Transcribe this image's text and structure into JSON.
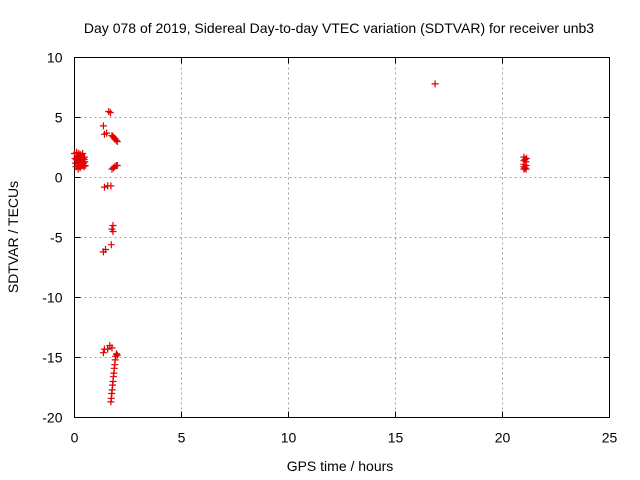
{
  "colors": {
    "series": "#e00000",
    "grid": "#a0a0a0",
    "axis": "#000000"
  },
  "chart_data": {
    "type": "scatter",
    "title": "Day 078 of 2019, Sidereal Day-to-day VTEC variation (SDTVAR) for receiver unb3",
    "xlabel": "GPS time / hours",
    "ylabel": "SDTVAR / TECUs",
    "xlim": [
      0,
      25
    ],
    "ylim": [
      -20,
      10
    ],
    "xticks": [
      0,
      5,
      10,
      15,
      20,
      25
    ],
    "yticks": [
      -20,
      -15,
      -10,
      -5,
      0,
      5,
      10
    ],
    "grid": true,
    "marker": "plus",
    "series": [
      {
        "points": [
          [
            0.0,
            2.0
          ],
          [
            0.03,
            1.6
          ],
          [
            0.05,
            1.2
          ],
          [
            0.07,
            0.9
          ],
          [
            0.1,
            2.1
          ],
          [
            0.12,
            1.8
          ],
          [
            0.13,
            1.4
          ],
          [
            0.15,
            1.0
          ],
          [
            0.17,
            0.7
          ],
          [
            0.2,
            2.0
          ],
          [
            0.22,
            1.7
          ],
          [
            0.24,
            1.3
          ],
          [
            0.26,
            0.8
          ],
          [
            0.28,
            1.9
          ],
          [
            0.3,
            1.5
          ],
          [
            0.32,
            1.1
          ],
          [
            0.34,
            1.8
          ],
          [
            0.36,
            1.4
          ],
          [
            0.38,
            2.0
          ],
          [
            0.4,
            1.6
          ],
          [
            0.42,
            1.2
          ],
          [
            0.44,
            0.9
          ],
          [
            0.46,
            1.7
          ],
          [
            0.48,
            1.3
          ],
          [
            0.5,
            1.0
          ],
          [
            0.08,
            1.5
          ],
          [
            0.18,
            1.2
          ],
          [
            0.27,
            1.6
          ],
          [
            0.37,
            1.0
          ],
          [
            0.45,
            1.5
          ],
          [
            1.35,
            4.3
          ],
          [
            1.4,
            3.6
          ],
          [
            1.5,
            3.7
          ],
          [
            1.4,
            -0.8
          ],
          [
            1.55,
            -0.7
          ],
          [
            1.6,
            5.5
          ],
          [
            1.68,
            5.4
          ],
          [
            1.75,
            3.5
          ],
          [
            1.8,
            3.4
          ],
          [
            1.85,
            3.3
          ],
          [
            1.9,
            3.2
          ],
          [
            1.95,
            3.1
          ],
          [
            2.0,
            3.0
          ],
          [
            1.75,
            0.7
          ],
          [
            1.82,
            0.8
          ],
          [
            1.88,
            0.9
          ],
          [
            1.95,
            1.0
          ],
          [
            2.0,
            1.0
          ],
          [
            1.7,
            -0.7
          ],
          [
            1.8,
            -4.0
          ],
          [
            1.75,
            -4.3
          ],
          [
            1.8,
            -4.5
          ],
          [
            1.72,
            -5.6
          ],
          [
            1.35,
            -6.2
          ],
          [
            1.45,
            -6.0
          ],
          [
            1.4,
            -14.3
          ],
          [
            1.35,
            -14.6
          ],
          [
            1.55,
            -14.3
          ],
          [
            1.65,
            -14.0
          ],
          [
            1.75,
            -14.2
          ],
          [
            1.7,
            -18.7
          ],
          [
            1.72,
            -18.4
          ],
          [
            1.74,
            -18.0
          ],
          [
            1.76,
            -17.7
          ],
          [
            1.78,
            -17.3
          ],
          [
            1.8,
            -17.0
          ],
          [
            1.82,
            -16.6
          ],
          [
            1.84,
            -16.3
          ],
          [
            1.86,
            -15.9
          ],
          [
            1.88,
            -15.6
          ],
          [
            1.9,
            -15.2
          ],
          [
            1.92,
            -14.9
          ],
          [
            1.96,
            -14.7
          ],
          [
            2.0,
            -14.8
          ],
          [
            16.85,
            7.8
          ],
          [
            21.0,
            1.7
          ],
          [
            21.0,
            1.4
          ],
          [
            21.0,
            1.1
          ],
          [
            21.0,
            0.9
          ],
          [
            21.0,
            0.7
          ],
          [
            21.05,
            1.5
          ],
          [
            21.05,
            0.8
          ],
          [
            21.1,
            1.3
          ],
          [
            21.1,
            1.0
          ],
          [
            21.1,
            0.7
          ],
          [
            21.12,
            1.6
          ]
        ]
      }
    ]
  }
}
